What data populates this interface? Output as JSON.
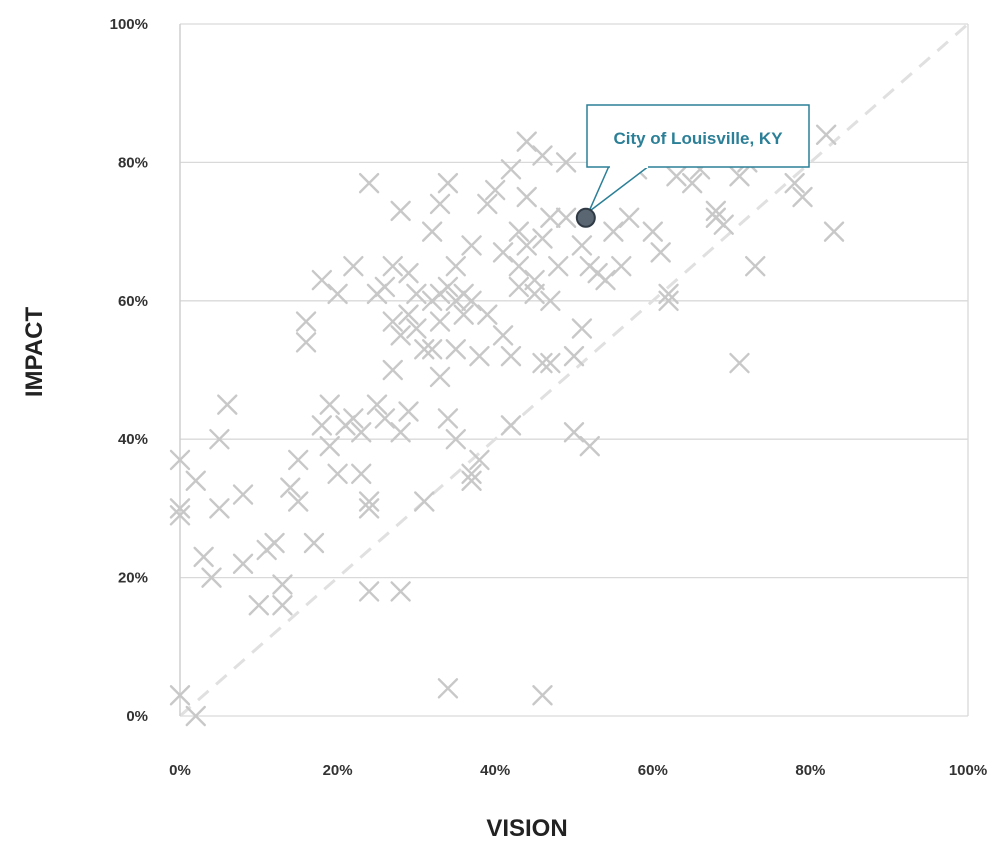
{
  "chart_data": {
    "type": "scatter",
    "title": "",
    "xlabel": "VISION",
    "ylabel": "IMPACT",
    "xlim": [
      0,
      100
    ],
    "ylim": [
      0,
      100
    ],
    "x_ticks": [
      "0%",
      "20%",
      "40%",
      "60%",
      "80%",
      "100%"
    ],
    "y_ticks": [
      "0%",
      "20%",
      "40%",
      "60%",
      "80%",
      "100%"
    ],
    "grid": "horizontal",
    "reference_line": "y = x (dashed diagonal)",
    "marker": "x",
    "colors": {
      "points": "#c8c8c8",
      "grid": "#d9d9d9",
      "diagonal": "#e0e0e0",
      "highlight_fill": "#5a6772",
      "highlight_stroke": "#2f3a44",
      "callout": "#2b7f97"
    },
    "highlight": {
      "label": "City of Louisville, KY",
      "x": 51.5,
      "y": 72
    },
    "points": [
      [
        0,
        37
      ],
      [
        0,
        30
      ],
      [
        0,
        29
      ],
      [
        0,
        3
      ],
      [
        2,
        0
      ],
      [
        2,
        34
      ],
      [
        3,
        23
      ],
      [
        4,
        20
      ],
      [
        5,
        30
      ],
      [
        5,
        40
      ],
      [
        6,
        45
      ],
      [
        8,
        32
      ],
      [
        8,
        22
      ],
      [
        10,
        16
      ],
      [
        11,
        24
      ],
      [
        12,
        25
      ],
      [
        13,
        19
      ],
      [
        13,
        16
      ],
      [
        14,
        33
      ],
      [
        15,
        37
      ],
      [
        15,
        31
      ],
      [
        16,
        54
      ],
      [
        16,
        57
      ],
      [
        17,
        25
      ],
      [
        18,
        63
      ],
      [
        18,
        42
      ],
      [
        19,
        39
      ],
      [
        19,
        45
      ],
      [
        20,
        35
      ],
      [
        20,
        61
      ],
      [
        21,
        42
      ],
      [
        22,
        65
      ],
      [
        22,
        43
      ],
      [
        23,
        41
      ],
      [
        23,
        35
      ],
      [
        24,
        30
      ],
      [
        24,
        31
      ],
      [
        24,
        18
      ],
      [
        24,
        77
      ],
      [
        25,
        45
      ],
      [
        25,
        61
      ],
      [
        26,
        43
      ],
      [
        26,
        62
      ],
      [
        27,
        65
      ],
      [
        27,
        57
      ],
      [
        27,
        50
      ],
      [
        28,
        73
      ],
      [
        28,
        55
      ],
      [
        28,
        41
      ],
      [
        28,
        18
      ],
      [
        29,
        58
      ],
      [
        29,
        64
      ],
      [
        29,
        44
      ],
      [
        30,
        61
      ],
      [
        30,
        56
      ],
      [
        31,
        31
      ],
      [
        31,
        53
      ],
      [
        32,
        70
      ],
      [
        32,
        60
      ],
      [
        32,
        53
      ],
      [
        33,
        74
      ],
      [
        33,
        49
      ],
      [
        33,
        57
      ],
      [
        33,
        61
      ],
      [
        34,
        77
      ],
      [
        34,
        62
      ],
      [
        34,
        43
      ],
      [
        34,
        4
      ],
      [
        35,
        65
      ],
      [
        35,
        60
      ],
      [
        35,
        40
      ],
      [
        35,
        53
      ],
      [
        36,
        58
      ],
      [
        36,
        61
      ],
      [
        37,
        68
      ],
      [
        37,
        60
      ],
      [
        37,
        35
      ],
      [
        37,
        34
      ],
      [
        38,
        37
      ],
      [
        38,
        52
      ],
      [
        39,
        74
      ],
      [
        39,
        58
      ],
      [
        40,
        76
      ],
      [
        41,
        67
      ],
      [
        41,
        55
      ],
      [
        42,
        79
      ],
      [
        42,
        52
      ],
      [
        42,
        42
      ],
      [
        43,
        70
      ],
      [
        43,
        65
      ],
      [
        43,
        62
      ],
      [
        44,
        83
      ],
      [
        44,
        75
      ],
      [
        44,
        68
      ],
      [
        45,
        61
      ],
      [
        45,
        63
      ],
      [
        46,
        81
      ],
      [
        46,
        69
      ],
      [
        46,
        51
      ],
      [
        46,
        3
      ],
      [
        47,
        72
      ],
      [
        47,
        60
      ],
      [
        47,
        51
      ],
      [
        48,
        65
      ],
      [
        49,
        72
      ],
      [
        49,
        80
      ],
      [
        50,
        41
      ],
      [
        50,
        52
      ],
      [
        51,
        56
      ],
      [
        51,
        68
      ],
      [
        52,
        65
      ],
      [
        52,
        39
      ],
      [
        53,
        64
      ],
      [
        54,
        63
      ],
      [
        55,
        70
      ],
      [
        56,
        65
      ],
      [
        57,
        72
      ],
      [
        58,
        79
      ],
      [
        60,
        70
      ],
      [
        61,
        67
      ],
      [
        62,
        60
      ],
      [
        62,
        61
      ],
      [
        63,
        78
      ],
      [
        65,
        77
      ],
      [
        66,
        79
      ],
      [
        68,
        73
      ],
      [
        68,
        72
      ],
      [
        69,
        71
      ],
      [
        71,
        78
      ],
      [
        71,
        51
      ],
      [
        72,
        80
      ],
      [
        73,
        65
      ],
      [
        78,
        77
      ],
      [
        79,
        75
      ],
      [
        82,
        84
      ],
      [
        83,
        70
      ]
    ]
  }
}
